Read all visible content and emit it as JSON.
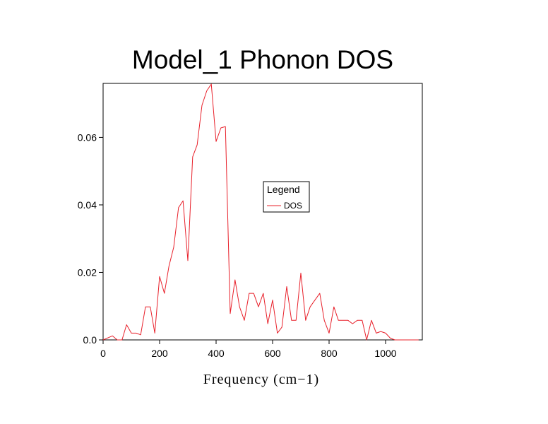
{
  "chart_data": {
    "type": "line",
    "title": "Model_1 Phonon DOS",
    "xlabel": "Frequency (cm−1)",
    "ylabel": "",
    "xlim": [
      0,
      1130
    ],
    "ylim": [
      0,
      0.076
    ],
    "xticks": [
      0,
      200,
      400,
      600,
      800,
      1000
    ],
    "xtick_labels": [
      "0",
      "200",
      "400",
      "600",
      "800",
      "1000"
    ],
    "yticks": [
      0,
      0.02,
      0.04,
      0.06
    ],
    "ytick_labels": [
      "0.0",
      "0.02",
      "0.04",
      "0.06"
    ],
    "grid": false,
    "legend": {
      "title": "Legend",
      "placement": "center-right"
    },
    "series": [
      {
        "name": "DOS",
        "color": "#e8202a",
        "x": [
          0,
          33,
          50,
          67,
          83,
          100,
          117,
          133,
          150,
          167,
          183,
          200,
          217,
          233,
          250,
          267,
          283,
          300,
          317,
          333,
          350,
          367,
          383,
          400,
          417,
          433,
          450,
          467,
          483,
          500,
          517,
          533,
          550,
          567,
          583,
          600,
          617,
          633,
          650,
          667,
          683,
          700,
          717,
          733,
          750,
          767,
          783,
          800,
          817,
          833,
          850,
          867,
          883,
          900,
          917,
          933,
          950,
          967,
          983,
          1000,
          1017,
          1033,
          1050,
          1067,
          1083,
          1100,
          1117
        ],
        "y": [
          0,
          0.0012,
          0,
          0,
          0.0045,
          0.002,
          0.002,
          0.0015,
          0.0098,
          0.0098,
          0.002,
          0.0188,
          0.0138,
          0.0218,
          0.0275,
          0.0392,
          0.0412,
          0.0235,
          0.0542,
          0.0578,
          0.0695,
          0.0738,
          0.0758,
          0.0588,
          0.0628,
          0.0632,
          0.0078,
          0.0178,
          0.0098,
          0.0058,
          0.0138,
          0.0138,
          0.0098,
          0.0138,
          0.0048,
          0.0118,
          0.002,
          0.0038,
          0.0158,
          0.0058,
          0.0058,
          0.0198,
          0.0058,
          0.0098,
          0.0118,
          0.0138,
          0.0058,
          0.002,
          0.0098,
          0.0058,
          0.0058,
          0.0058,
          0.0048,
          0.0058,
          0.0058,
          0,
          0.0058,
          0.002,
          0.0025,
          0.002,
          0.0005,
          0,
          0,
          0,
          0,
          0,
          0
        ]
      }
    ]
  }
}
